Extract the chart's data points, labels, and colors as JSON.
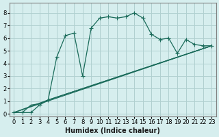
{
  "title": "",
  "xlabel": "Humidex (Indice chaleur)",
  "ylabel": "",
  "bg_color": "#d6eeee",
  "grid_color": "#b0d0d0",
  "line_color": "#1a6b5a",
  "xlim": [
    -0.5,
    23.5
  ],
  "ylim": [
    -0.2,
    8.8
  ],
  "xticks": [
    0,
    1,
    2,
    3,
    4,
    5,
    6,
    7,
    8,
    9,
    10,
    11,
    12,
    13,
    14,
    15,
    16,
    17,
    18,
    19,
    20,
    21,
    22,
    23
  ],
  "yticks": [
    0,
    1,
    2,
    3,
    4,
    5,
    6,
    7,
    8
  ],
  "series": [
    {
      "x": [
        0,
        1,
        2,
        3,
        4,
        5,
        6,
        7,
        8,
        9,
        10,
        11,
        12,
        13,
        14,
        15,
        16,
        17,
        18,
        19,
        20,
        21,
        22,
        23
      ],
      "y": [
        0.1,
        0.1,
        0.1,
        0.7,
        1.1,
        4.5,
        6.2,
        6.4,
        3.0,
        6.8,
        7.6,
        7.7,
        7.6,
        7.7,
        8.0,
        7.6,
        6.3,
        5.9,
        6.0,
        4.8,
        5.9,
        5.5,
        5.4,
        5.4
      ],
      "markers": true
    },
    {
      "x": [
        0,
        1,
        2,
        3,
        4,
        23
      ],
      "y": [
        0.1,
        0.1,
        0.7,
        0.8,
        1.1,
        5.4
      ],
      "markers": false
    },
    {
      "x": [
        0,
        4,
        23
      ],
      "y": [
        0.1,
        1.1,
        5.4
      ],
      "markers": false
    },
    {
      "x": [
        0,
        23
      ],
      "y": [
        0.1,
        5.4
      ],
      "markers": false
    }
  ]
}
